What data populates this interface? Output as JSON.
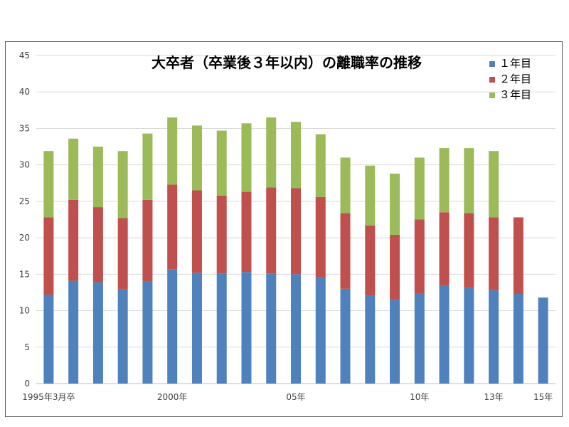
{
  "chart_data": {
    "type": "bar",
    "stacked": true,
    "title": "大卒者（卒業後３年以内）の離職率の推移",
    "xlabel": "",
    "ylabel": "",
    "ylim": [
      0,
      45
    ],
    "yticks": [
      0,
      5,
      10,
      15,
      20,
      25,
      30,
      35,
      40,
      45
    ],
    "grid": true,
    "legend_position": "top-right",
    "x_tick_labels": [
      {
        "index": 0,
        "label": "1995年3月卒"
      },
      {
        "index": 5,
        "label": "2000年"
      },
      {
        "index": 10,
        "label": "05年"
      },
      {
        "index": 15,
        "label": "10年"
      },
      {
        "index": 18,
        "label": "13年"
      },
      {
        "index": 20,
        "label": "15年"
      }
    ],
    "categories": [
      "1995",
      "1996",
      "1997",
      "1998",
      "1999",
      "2000",
      "2001",
      "2002",
      "2003",
      "2004",
      "2005",
      "2006",
      "2007",
      "2008",
      "2009",
      "2010",
      "2011",
      "2012",
      "2013",
      "2014",
      "2015"
    ],
    "series": [
      {
        "name": "１年目",
        "color": "#4F81BD",
        "values": [
          12.2,
          14.1,
          13.9,
          12.9,
          14.0,
          15.7,
          15.2,
          15.1,
          15.3,
          15.1,
          15.0,
          14.6,
          13.0,
          12.1,
          11.5,
          12.4,
          13.4,
          13.1,
          12.8,
          12.3,
          11.8
        ]
      },
      {
        "name": "２年目",
        "color": "#C0504D",
        "values": [
          10.6,
          11.1,
          10.3,
          9.8,
          11.2,
          11.6,
          11.3,
          10.7,
          11.0,
          11.8,
          11.8,
          11.0,
          10.4,
          9.6,
          8.9,
          10.1,
          10.1,
          10.3,
          10.0,
          10.5,
          0
        ]
      },
      {
        "name": "３年目",
        "color": "#9BBB59",
        "values": [
          9.1,
          8.4,
          8.3,
          9.2,
          9.1,
          9.2,
          8.9,
          8.9,
          9.4,
          9.6,
          9.1,
          8.6,
          7.6,
          8.2,
          8.4,
          8.5,
          8.8,
          8.9,
          9.1,
          0,
          0
        ]
      }
    ]
  }
}
